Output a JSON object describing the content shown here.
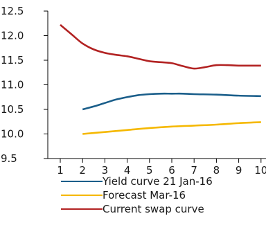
{
  "chart_data": {
    "type": "line",
    "x": [
      1,
      2,
      3,
      4,
      5,
      6,
      7,
      8,
      9,
      10
    ],
    "xlim": [
      1,
      10
    ],
    "ylim": [
      9.5,
      12.5
    ],
    "yticks": [
      "12.5",
      "12.0",
      "11.5",
      "11.0",
      "10.5",
      "10.0",
      "9.5"
    ],
    "xticks": [
      "1",
      "2",
      "3",
      "4",
      "5",
      "6",
      "7",
      "8",
      "9",
      "10"
    ],
    "grid": false,
    "legend_position": "bottom",
    "series": [
      {
        "name": "Yield curve 21 Jan-16",
        "color": "#1a5e8a",
        "x": [
          2,
          2.5,
          3,
          3.5,
          4,
          4.5,
          5,
          5.5,
          6,
          6.5,
          7,
          8,
          9,
          10
        ],
        "values": [
          10.5,
          10.56,
          10.63,
          10.7,
          10.75,
          10.79,
          10.81,
          10.82,
          10.82,
          10.82,
          10.81,
          10.8,
          10.78,
          10.77
        ]
      },
      {
        "name": "Forecast Mar-16",
        "color": "#f5b800",
        "x": [
          2,
          3,
          4,
          5,
          6,
          7,
          8,
          9,
          10
        ],
        "values": [
          10.0,
          10.04,
          10.08,
          10.12,
          10.15,
          10.17,
          10.19,
          10.22,
          10.24
        ]
      },
      {
        "name": "Current swap curve",
        "color": "#b22222",
        "x": [
          1,
          1.5,
          2,
          2.5,
          3,
          3.5,
          4,
          4.5,
          5,
          5.5,
          6,
          6.5,
          7,
          7.5,
          8,
          8.5,
          9,
          9.5,
          10
        ],
        "values": [
          12.22,
          12.03,
          11.84,
          11.72,
          11.65,
          11.61,
          11.58,
          11.53,
          11.48,
          11.46,
          11.44,
          11.38,
          11.33,
          11.36,
          11.4,
          11.4,
          11.39,
          11.39,
          11.39
        ]
      }
    ]
  }
}
